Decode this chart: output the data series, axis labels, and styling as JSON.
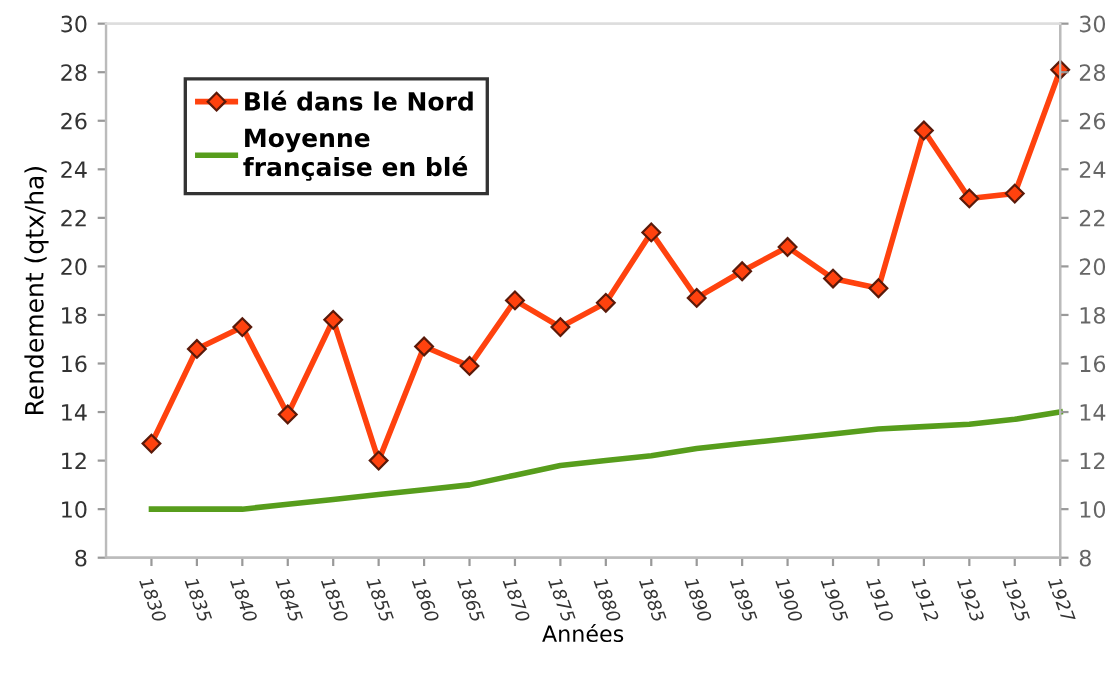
{
  "chart_data": {
    "type": "line",
    "xlabel": "Années",
    "ylabel": "Rendement (qtx/ha)",
    "categories": [
      "1830",
      "1835",
      "1840",
      "1845",
      "1850",
      "1855",
      "1860",
      "1865",
      "1870",
      "1875",
      "1880",
      "1885",
      "1890",
      "1895",
      "1900",
      "1905",
      "1910",
      "1912",
      "1923",
      "1925",
      "1927"
    ],
    "series": [
      {
        "name": "Blé dans le Nord",
        "color": "#ff420e",
        "marker": "diamond",
        "values": [
          12.7,
          16.6,
          17.5,
          13.9,
          17.8,
          12.0,
          16.7,
          15.9,
          18.6,
          17.5,
          18.5,
          21.4,
          18.7,
          19.8,
          20.8,
          19.5,
          19.1,
          25.6,
          22.8,
          23.0,
          28.1
        ]
      },
      {
        "name": "Moyenne\nfrançaise en blé",
        "color": "#579d1c",
        "marker": "none",
        "values": [
          10.0,
          10.0,
          10.0,
          10.2,
          10.4,
          10.6,
          10.8,
          11.0,
          11.4,
          11.8,
          12.0,
          12.2,
          12.5,
          12.7,
          12.9,
          13.1,
          13.3,
          13.4,
          13.5,
          13.7,
          14.0
        ]
      }
    ],
    "ylim": [
      8,
      30
    ],
    "yticks": [
      8,
      10,
      12,
      14,
      16,
      18,
      20,
      22,
      24,
      26,
      28,
      30
    ],
    "y2lim": [
      8,
      30
    ],
    "y2ticks": [
      8,
      10,
      12,
      14,
      16,
      18,
      20,
      22,
      24,
      26,
      28,
      30
    ],
    "grid": false,
    "legend": "top left",
    "line_style": "solid"
  }
}
